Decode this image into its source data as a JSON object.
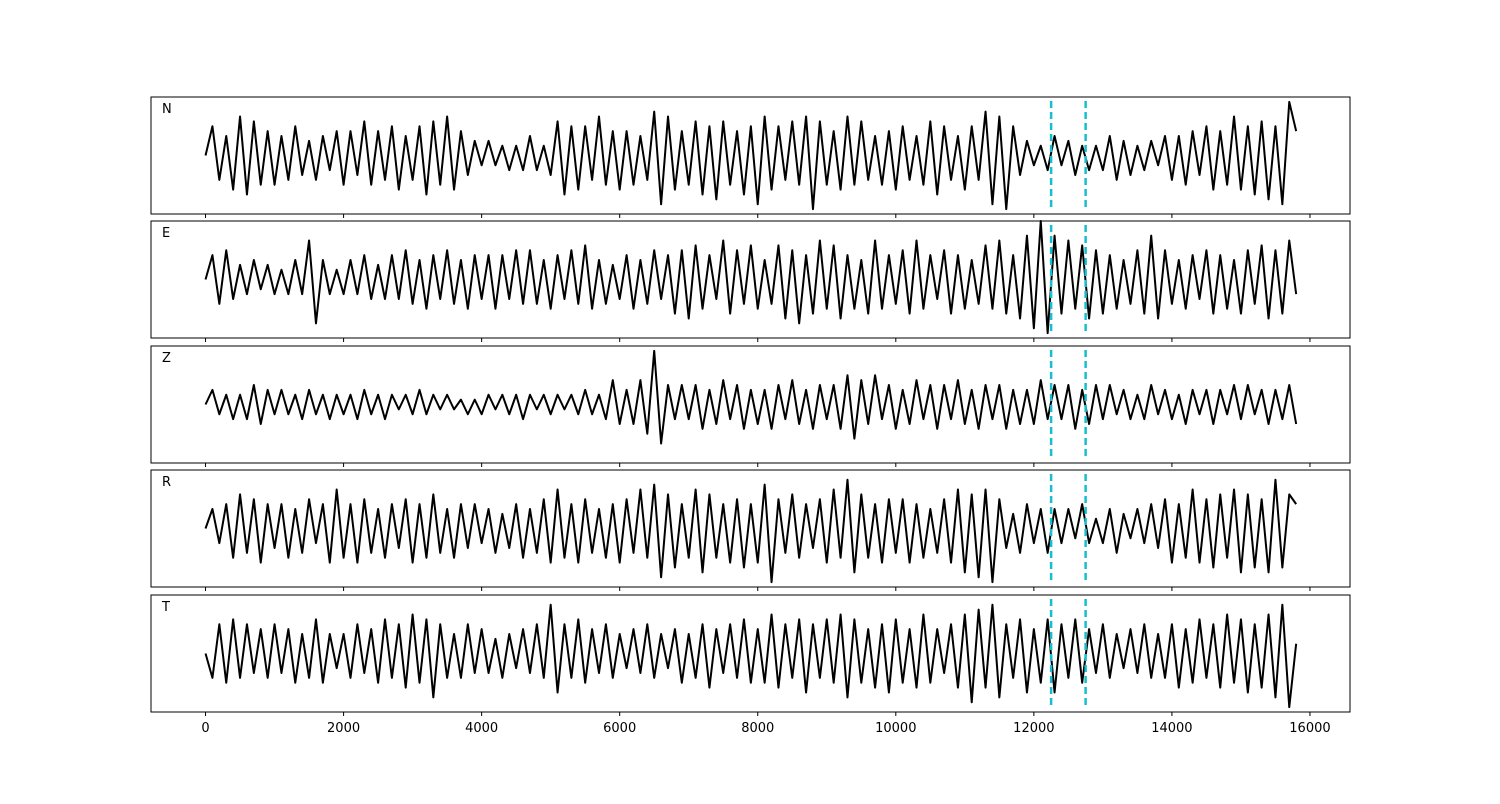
{
  "chart_data": {
    "type": "line",
    "layout": "stacked",
    "x": [
      0,
      100,
      200,
      300,
      400,
      500,
      600,
      700,
      800,
      900,
      1000,
      1100,
      1200,
      1300,
      1400,
      1500,
      1600,
      1700,
      1800,
      1900,
      2000,
      2100,
      2200,
      2300,
      2400,
      2500,
      2600,
      2700,
      2800,
      2900,
      3000,
      3100,
      3200,
      3300,
      3400,
      3500,
      3600,
      3700,
      3800,
      3900,
      4000,
      4100,
      4200,
      4300,
      4400,
      4500,
      4600,
      4700,
      4800,
      4900,
      5000,
      5100,
      5200,
      5300,
      5400,
      5500,
      5600,
      5700,
      5800,
      5900,
      6000,
      6100,
      6200,
      6300,
      6400,
      6500,
      6600,
      6700,
      6800,
      6900,
      7000,
      7100,
      7200,
      7300,
      7400,
      7500,
      7600,
      7700,
      7800,
      7900,
      8000,
      8100,
      8200,
      8300,
      8400,
      8500,
      8600,
      8700,
      8800,
      8900,
      9000,
      9100,
      9200,
      9300,
      9400,
      9500,
      9600,
      9700,
      9800,
      9900,
      10000,
      10100,
      10200,
      10300,
      10400,
      10500,
      10600,
      10700,
      10800,
      10900,
      11000,
      11100,
      11200,
      11300,
      11400,
      11500,
      11600,
      11700,
      11800,
      11900,
      12000,
      12100,
      12200,
      12300,
      12400,
      12500,
      12600,
      12700,
      12800,
      12900,
      13000,
      13100,
      13200,
      13300,
      13400,
      13500,
      13600,
      13700,
      13800,
      13900,
      14000,
      14100,
      14200,
      14300,
      14400,
      14500,
      14600,
      14700,
      14800,
      14900,
      15000,
      15100,
      15200,
      15300,
      15400,
      15500,
      15600,
      15700,
      15800
    ],
    "xlim": [
      -790,
      16580
    ],
    "xticks": [
      0,
      2000,
      4000,
      6000,
      8000,
      10000,
      12000,
      14000,
      16000
    ],
    "series": [
      {
        "name": "N",
        "color": "#000000",
        "ylim": [
          -12,
          12
        ],
        "values": [
          0,
          6,
          -5,
          4,
          -7,
          8,
          -8,
          7,
          -6,
          5,
          -6,
          4,
          -5,
          6,
          -4,
          3,
          -5,
          4,
          -3,
          5,
          -6,
          5,
          -4,
          7,
          -6,
          5,
          -5,
          6,
          -7,
          4,
          -5,
          6,
          -8,
          7,
          -6,
          8,
          -7,
          5,
          -4,
          3,
          -2,
          3,
          -2,
          2,
          -3,
          2,
          -3,
          4,
          -3,
          2,
          -4,
          7,
          -8,
          6,
          -7,
          6,
          -5,
          8,
          -6,
          5,
          -7,
          5,
          -6,
          4,
          -5,
          9,
          -10,
          8,
          -7,
          5,
          -6,
          7,
          -8,
          6,
          -9,
          7,
          -6,
          5,
          -8,
          6,
          -10,
          8,
          -7,
          6,
          -5,
          7,
          -6,
          8,
          -11,
          7,
          -6,
          5,
          -7,
          8,
          -6,
          7,
          -5,
          4,
          -6,
          5,
          -7,
          6,
          -5,
          4,
          -6,
          7,
          -8,
          6,
          -5,
          4,
          -7,
          6,
          -5,
          9,
          -10,
          8,
          -11,
          6,
          -4,
          3,
          -2,
          2,
          -3,
          4,
          -2,
          3,
          -4,
          2,
          -3,
          2,
          -3,
          4,
          -5,
          3,
          -4,
          2,
          -3,
          3,
          -2,
          4,
          -5,
          4,
          -6,
          5,
          -4,
          6,
          -7,
          5,
          -6,
          8,
          -7,
          6,
          -8,
          7,
          -9,
          6,
          -10,
          11,
          5
        ]
      },
      {
        "name": "E",
        "color": "#000000",
        "ylim": [
          -12,
          12
        ],
        "values": [
          0,
          5,
          -5,
          6,
          -4,
          3,
          -3,
          4,
          -2,
          3,
          -3,
          2,
          -3,
          4,
          -3,
          8,
          -9,
          4,
          -3,
          2,
          -3,
          4,
          -3,
          5,
          -4,
          3,
          -4,
          5,
          -4,
          6,
          -5,
          4,
          -6,
          5,
          -4,
          6,
          -5,
          4,
          -6,
          5,
          -4,
          5,
          -6,
          5,
          -4,
          6,
          -5,
          6,
          -5,
          4,
          -6,
          5,
          -4,
          6,
          -5,
          7,
          -6,
          4,
          -5,
          3,
          -4,
          5,
          -6,
          4,
          -5,
          6,
          -4,
          5,
          -7,
          6,
          -8,
          7,
          -6,
          5,
          -4,
          8,
          -7,
          6,
          -5,
          7,
          -6,
          4,
          -5,
          7,
          -8,
          6,
          -9,
          5,
          -7,
          8,
          -6,
          7,
          -8,
          5,
          -6,
          4,
          -7,
          8,
          -6,
          5,
          -5,
          6,
          -7,
          8,
          -6,
          5,
          -4,
          6,
          -7,
          5,
          -6,
          4,
          -5,
          7,
          -6,
          8,
          -7,
          5,
          -8,
          9,
          -10,
          12,
          -11,
          9,
          -7,
          8,
          -6,
          7,
          -8,
          6,
          -7,
          5,
          -6,
          4,
          -5,
          6,
          -7,
          9,
          -8,
          6,
          -5,
          4,
          -6,
          5,
          -4,
          6,
          -7,
          5,
          -6,
          4,
          -7,
          6,
          -5,
          7,
          -8,
          6,
          -7,
          8,
          -3
        ]
      },
      {
        "name": "Z",
        "color": "#000000",
        "ylim": [
          -12,
          12
        ],
        "values": [
          0,
          3,
          -2,
          2,
          -3,
          2,
          -3,
          4,
          -4,
          3,
          -2,
          3,
          -2,
          2,
          -3,
          3,
          -2,
          2,
          -3,
          2,
          -2,
          2,
          -3,
          3,
          -2,
          2,
          -3,
          2,
          -1,
          2,
          -2,
          3,
          -2,
          2,
          -1,
          2,
          -1,
          1,
          -2,
          1,
          -2,
          2,
          -1,
          2,
          -2,
          2,
          -3,
          2,
          -1,
          2,
          -2,
          2,
          -1,
          2,
          -2,
          3,
          -2,
          2,
          -3,
          5,
          -4,
          3,
          -4,
          5,
          -6,
          11,
          -8,
          4,
          -3,
          4,
          -3,
          4,
          -5,
          3,
          -4,
          5,
          -3,
          4,
          -5,
          3,
          -4,
          3,
          -5,
          4,
          -3,
          5,
          -4,
          3,
          -5,
          4,
          -3,
          4,
          -5,
          6,
          -7,
          5,
          -4,
          6,
          -3,
          4,
          -5,
          3,
          -4,
          5,
          -3,
          4,
          -5,
          4,
          -3,
          5,
          -4,
          3,
          -5,
          4,
          -3,
          4,
          -5,
          3,
          -4,
          3,
          -4,
          5,
          -3,
          4,
          -3,
          4,
          -5,
          3,
          -4,
          4,
          -3,
          4,
          -2,
          3,
          -3,
          2,
          -3,
          4,
          -2,
          3,
          -3,
          2,
          -4,
          3,
          -2,
          3,
          -4,
          3,
          -2,
          4,
          -3,
          4,
          -2,
          3,
          -4,
          3,
          -3,
          4,
          -4
        ]
      },
      {
        "name": "R",
        "color": "#000000",
        "ylim": [
          -12,
          12
        ],
        "values": [
          0,
          4,
          -3,
          5,
          -6,
          7,
          -5,
          6,
          -7,
          5,
          -4,
          5,
          -6,
          4,
          -5,
          6,
          -3,
          5,
          -7,
          8,
          -6,
          5,
          -7,
          6,
          -5,
          4,
          -6,
          5,
          -4,
          6,
          -7,
          5,
          -6,
          7,
          -5,
          4,
          -6,
          5,
          -4,
          5,
          -3,
          4,
          -5,
          3,
          -4,
          5,
          -6,
          4,
          -5,
          6,
          -7,
          8,
          -6,
          5,
          -7,
          6,
          -5,
          4,
          -6,
          5,
          -7,
          6,
          -5,
          8,
          -6,
          9,
          -10,
          7,
          -8,
          5,
          -6,
          8,
          -9,
          7,
          -6,
          5,
          -7,
          6,
          -8,
          5,
          -7,
          9,
          -11,
          6,
          -5,
          7,
          -6,
          5,
          -4,
          6,
          -7,
          8,
          -6,
          10,
          -9,
          7,
          -6,
          5,
          -7,
          6,
          -5,
          6,
          -7,
          5,
          -6,
          4,
          -5,
          6,
          -7,
          8,
          -9,
          7,
          -10,
          8,
          -11,
          6,
          -4,
          3,
          -5,
          5,
          -3,
          4,
          -5,
          4,
          -3,
          4,
          -2,
          5,
          -3,
          2,
          -3,
          4,
          -5,
          3,
          -2,
          4,
          -3,
          5,
          -4,
          6,
          -7,
          5,
          -6,
          8,
          -7,
          6,
          -8,
          7,
          -6,
          8,
          -9,
          7,
          -8,
          6,
          -9,
          10,
          -8,
          7,
          5
        ]
      },
      {
        "name": "T",
        "color": "#000000",
        "ylim": [
          -12,
          12
        ],
        "values": [
          0,
          -5,
          6,
          -6,
          7,
          -5,
          6,
          -4,
          5,
          -5,
          6,
          -4,
          5,
          -6,
          4,
          -5,
          7,
          -6,
          4,
          -3,
          4,
          -5,
          6,
          -4,
          5,
          -6,
          7,
          -5,
          6,
          -7,
          8,
          -6,
          7,
          -9,
          6,
          -5,
          4,
          -5,
          6,
          -4,
          5,
          -4,
          3,
          -5,
          4,
          -3,
          5,
          -4,
          6,
          -5,
          10,
          -8,
          6,
          -5,
          7,
          -6,
          5,
          -4,
          6,
          -5,
          4,
          -3,
          5,
          -4,
          6,
          -5,
          4,
          -3,
          5,
          -6,
          4,
          -5,
          6,
          -7,
          5,
          -4,
          6,
          -5,
          7,
          -6,
          5,
          -6,
          8,
          -7,
          6,
          -5,
          7,
          -8,
          6,
          -5,
          7,
          -6,
          8,
          -9,
          7,
          -6,
          5,
          -7,
          6,
          -8,
          7,
          -6,
          5,
          -7,
          8,
          -6,
          5,
          -4,
          6,
          -7,
          8,
          -10,
          9,
          -7,
          10,
          -9,
          6,
          -5,
          7,
          -8,
          5,
          -6,
          7,
          -8,
          6,
          -5,
          7,
          -6,
          5,
          -4,
          6,
          -5,
          4,
          -3,
          5,
          -4,
          6,
          -5,
          4,
          -5,
          6,
          -7,
          5,
          -6,
          7,
          -5,
          6,
          -7,
          8,
          -6,
          7,
          -8,
          6,
          -7,
          8,
          -9,
          10,
          -11,
          2
        ]
      }
    ],
    "vlines": {
      "x": [
        12250,
        12750
      ],
      "color": "#17becf",
      "style": "dashed"
    }
  }
}
